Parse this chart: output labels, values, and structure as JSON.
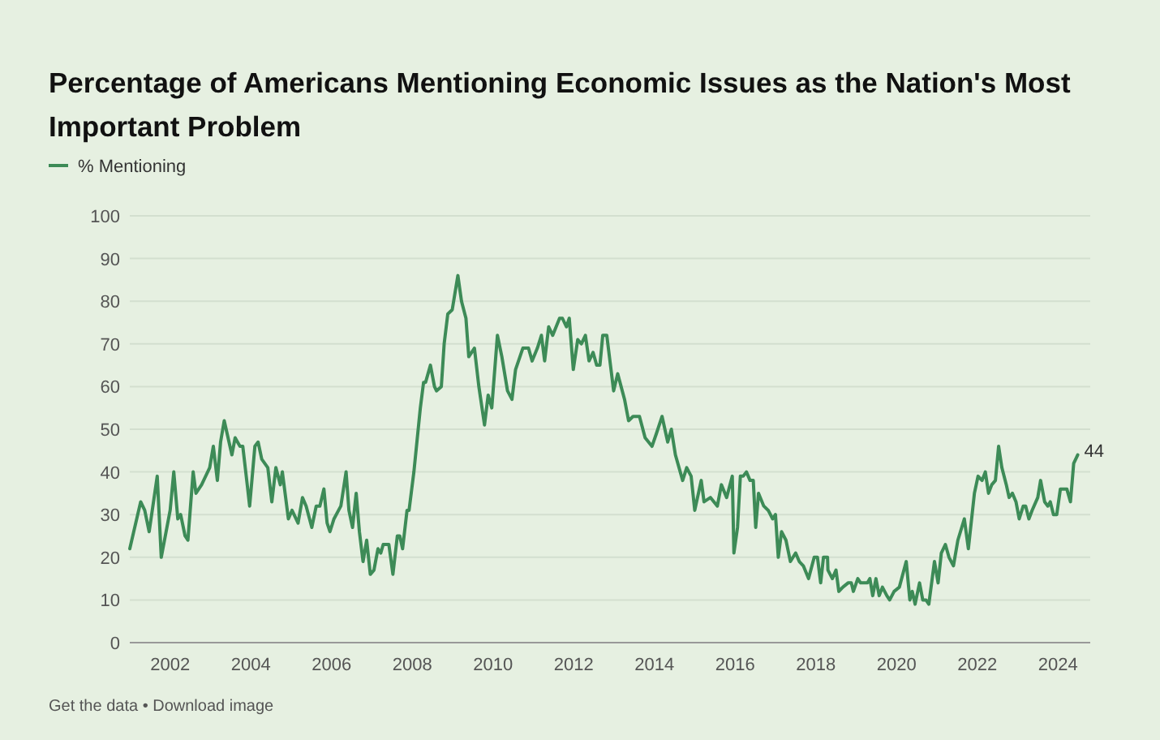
{
  "chart_data": {
    "type": "line",
    "title": "Percentage of Americans Mentioning Economic Issues as the Nation's Most Important Problem",
    "series": [
      {
        "name": "% Mentioning",
        "color": "#3d8b57",
        "x": [
          2001.0,
          2001.27,
          2001.37,
          2001.48,
          2001.68,
          2001.78,
          2002.0,
          2002.09,
          2002.19,
          2002.26,
          2002.37,
          2002.44,
          2002.57,
          2002.64,
          2002.78,
          2002.98,
          2003.07,
          2003.17,
          2003.25,
          2003.34,
          2003.53,
          2003.61,
          2003.73,
          2003.8,
          2003.91,
          2003.97,
          2004.1,
          2004.18,
          2004.27,
          2004.42,
          2004.52,
          2004.62,
          2004.73,
          2004.78,
          2004.93,
          2005.02,
          2005.17,
          2005.28,
          2005.37,
          2005.51,
          2005.62,
          2005.71,
          2005.81,
          2005.89,
          2005.96,
          2006.06,
          2006.23,
          2006.36,
          2006.43,
          2006.52,
          2006.61,
          2006.69,
          2006.78,
          2006.87,
          2006.96,
          2007.05,
          2007.15,
          2007.22,
          2007.28,
          2007.42,
          2007.52,
          2007.63,
          2007.69,
          2007.76,
          2007.87,
          2007.92,
          2008.04,
          2008.2,
          2008.28,
          2008.33,
          2008.45,
          2008.55,
          2008.6,
          2008.72,
          2008.79,
          2008.88,
          2008.99,
          2009.13,
          2009.22,
          2009.33,
          2009.4,
          2009.54,
          2009.65,
          2009.79,
          2009.88,
          2009.97,
          2010.11,
          2010.22,
          2010.36,
          2010.47,
          2010.56,
          2010.74,
          2010.88,
          2010.97,
          2011.1,
          2011.2,
          2011.28,
          2011.38,
          2011.48,
          2011.65,
          2011.72,
          2011.82,
          2011.89,
          2011.99,
          2012.1,
          2012.19,
          2012.29,
          2012.38,
          2012.48,
          2012.57,
          2012.65,
          2012.72,
          2012.82,
          2012.99,
          2013.09,
          2013.26,
          2013.36,
          2013.47,
          2013.63,
          2013.77,
          2013.94,
          2014.05,
          2014.19,
          2014.33,
          2014.42,
          2014.52,
          2014.7,
          2014.8,
          2014.91,
          2015.0,
          2015.16,
          2015.23,
          2015.39,
          2015.56,
          2015.66,
          2015.79,
          2015.93,
          2015.97,
          2016.06,
          2016.13,
          2016.2,
          2016.28,
          2016.37,
          2016.45,
          2016.51,
          2016.58,
          2016.71,
          2016.82,
          2016.93,
          2017.0,
          2017.07,
          2017.15,
          2017.26,
          2017.37,
          2017.5,
          2017.59,
          2017.69,
          2017.82,
          2017.96,
          2018.04,
          2018.12,
          2018.19,
          2018.29,
          2018.3,
          2018.41,
          2018.5,
          2018.57,
          2018.67,
          2018.8,
          2018.88,
          2018.93,
          2019.04,
          2019.11,
          2019.2,
          2019.28,
          2019.34,
          2019.41,
          2019.49,
          2019.57,
          2019.65,
          2019.76,
          2019.83,
          2019.94,
          2020.07,
          2020.24,
          2020.33,
          2020.39,
          2020.46,
          2020.57,
          2020.65,
          2020.73,
          2020.8,
          2020.94,
          2021.03,
          2021.11,
          2021.21,
          2021.3,
          2021.41,
          2021.52,
          2021.68,
          2021.78,
          2021.93,
          2022.02,
          2022.12,
          2022.2,
          2022.28,
          2022.36,
          2022.45,
          2022.53,
          2022.61,
          2022.72,
          2022.79,
          2022.87,
          2022.96,
          2023.04,
          2023.14,
          2023.2,
          2023.28,
          2023.36,
          2023.5,
          2023.57,
          2023.67,
          2023.75,
          2023.81,
          2023.89,
          2023.97,
          2024.06,
          2024.14,
          2024.22,
          2024.31,
          2024.39,
          2024.49
        ],
        "values": [
          22,
          33,
          31,
          26,
          39,
          20,
          31,
          40,
          29,
          30,
          25,
          24,
          40,
          35,
          37,
          41,
          46,
          38,
          47,
          52,
          44,
          48,
          46,
          46,
          37,
          32,
          46,
          47,
          43,
          41,
          33,
          41,
          37,
          40,
          29,
          31,
          28,
          34,
          32,
          27,
          32,
          32,
          36,
          28,
          26,
          29,
          32,
          40,
          31,
          27,
          35,
          26,
          19,
          24,
          16,
          17,
          22,
          21,
          23,
          23,
          16,
          25,
          25,
          22,
          31,
          31,
          40,
          55,
          61,
          61,
          65,
          60,
          59,
          60,
          70,
          77,
          78,
          86,
          80,
          76,
          67,
          69,
          60,
          51,
          58,
          55,
          72,
          67,
          59,
          57,
          64,
          69,
          69,
          66,
          69,
          72,
          66,
          74,
          72,
          76,
          76,
          74,
          76,
          64,
          71,
          70,
          72,
          66,
          68,
          65,
          65,
          72,
          72,
          59,
          63,
          57,
          52,
          53,
          53,
          48,
          46,
          49,
          53,
          47,
          50,
          44,
          38,
          41,
          39,
          31,
          38,
          33,
          34,
          32,
          37,
          34,
          39,
          21,
          27,
          39,
          39,
          40,
          38,
          38,
          27,
          35,
          32,
          31,
          29,
          30,
          20,
          26,
          24,
          19,
          21,
          19,
          18,
          15,
          20,
          20,
          14,
          20,
          20,
          17,
          15,
          17,
          12,
          13,
          14,
          14,
          12,
          15,
          14,
          14,
          14,
          15,
          11,
          15,
          11,
          13,
          11,
          10,
          12,
          13,
          19,
          10,
          12,
          9,
          14,
          10,
          10,
          9,
          19,
          14,
          21,
          23,
          20,
          18,
          24,
          29,
          22,
          35,
          39,
          38,
          40,
          35,
          37,
          38,
          46,
          41,
          37,
          34,
          35,
          33,
          29,
          32,
          32,
          29,
          31,
          34,
          38,
          33,
          32,
          33,
          30,
          30,
          36,
          36,
          36,
          33,
          42,
          44
        ]
      }
    ],
    "xlim": [
      2001,
      2024.8
    ],
    "xticks": [
      2002,
      2004,
      2006,
      2008,
      2010,
      2012,
      2014,
      2016,
      2018,
      2020,
      2022,
      2024
    ],
    "ylim": [
      0,
      100
    ],
    "yticks": [
      0,
      10,
      20,
      30,
      40,
      50,
      60,
      70,
      80,
      90,
      100
    ],
    "grid": "y",
    "legend": "top left",
    "marker": "none",
    "line_style": "solid",
    "annotations": [
      {
        "text": "44",
        "x": 2024.49,
        "y": 44
      },
      "Get the data • Download image"
    ]
  }
}
